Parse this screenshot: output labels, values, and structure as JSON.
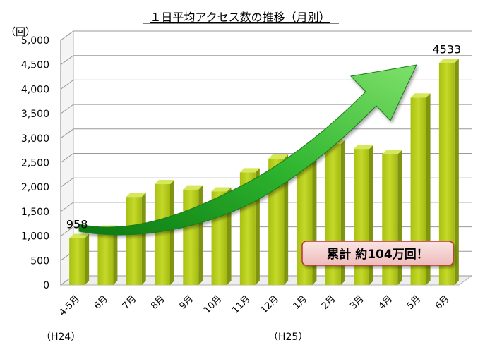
{
  "chart_data": {
    "type": "bar",
    "title": "１日平均アクセス数の推移（月別）",
    "unit_label": "（回）",
    "categories": [
      "4-5月",
      "6月",
      "7月",
      "8月",
      "9月",
      "10月",
      "11月",
      "12月",
      "1月",
      "2月",
      "3月",
      "4月",
      "5月",
      "6月"
    ],
    "values": [
      958,
      1130,
      1800,
      2060,
      1950,
      1910,
      2300,
      2580,
      2530,
      2880,
      2780,
      2670,
      3830,
      4533
    ],
    "ylim": [
      0,
      5000
    ],
    "yticks": [
      0,
      500,
      1000,
      1500,
      2000,
      2500,
      3000,
      3500,
      4000,
      4500,
      5000
    ],
    "ytick_labels": [
      "0",
      "500",
      "1,000",
      "1,500",
      "2,000",
      "2,500",
      "3,000",
      "3,500",
      "4,000",
      "4,500",
      "5,000"
    ],
    "data_labels": [
      {
        "index": 0,
        "text": "958"
      },
      {
        "index": 13,
        "text": "4533"
      }
    ],
    "period_labels": [
      "（H24）",
      "（H25）"
    ],
    "callout": "累計 約104万回！",
    "grid": true,
    "colors": {
      "bar_face": "#b5cc18",
      "bar_side": "#7f9410",
      "bar_top": "#d6e85a",
      "arrow": "#2fa52f",
      "callout_bg": "#f5d6d6",
      "callout_border": "#c03030"
    }
  }
}
